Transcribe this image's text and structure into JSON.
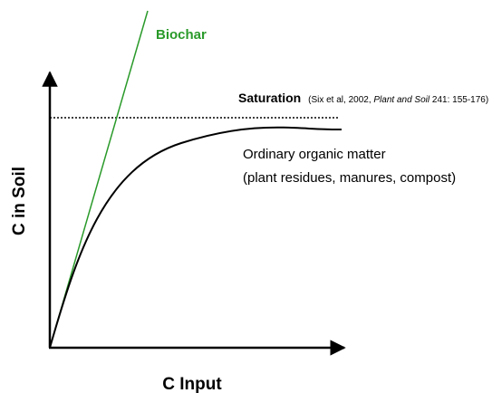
{
  "labels": {
    "biochar": "Biochar",
    "saturation": {
      "title": "Saturation",
      "citation_start": "(Six et al, 2002, ",
      "citation_journal": "Plant and Soil",
      "citation_end": " 241: 155-176)"
    },
    "ordinary": {
      "line1": "Ordinary organic matter",
      "line2": "(plant residues, manures, compost)"
    },
    "y_axis": "C in Soil",
    "x_axis": "C Input"
  }
}
